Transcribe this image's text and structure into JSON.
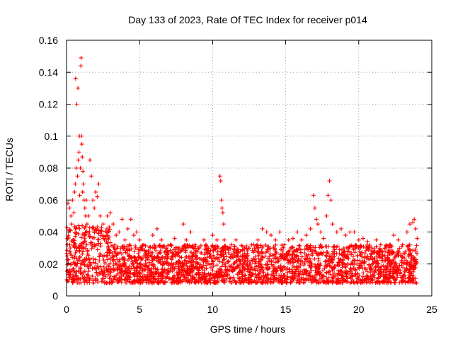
{
  "chart_data": {
    "type": "scatter",
    "title": "Day 133 of 2023, Rate Of TEC Index for receiver p014",
    "xlabel": "GPS time / hours",
    "ylabel": "ROTI / TECUs",
    "xlim": [
      0,
      25
    ],
    "ylim": [
      0,
      0.16
    ],
    "x_ticks": [
      0,
      5,
      10,
      15,
      20,
      25
    ],
    "x_tick_labels": [
      "0",
      "5",
      "10",
      "15",
      "20",
      "25"
    ],
    "y_ticks": [
      0,
      0.02,
      0.04,
      0.06,
      0.08,
      0.1,
      0.12,
      0.14,
      0.16
    ],
    "y_tick_labels": [
      "0",
      "0.02",
      "0.04",
      "0.06",
      "0.08",
      "0.1",
      "0.12",
      "0.14",
      "0.16"
    ],
    "grid": true,
    "marker": "plus",
    "color": "#ff0000",
    "series": [
      {
        "x": [
          0.05,
          0.1,
          0.15,
          0.2,
          0.25,
          0.3,
          0.35,
          0.4,
          0.45,
          0.5,
          0.55,
          0.6,
          0.62,
          0.65,
          0.7,
          0.75,
          0.78,
          0.8,
          0.85,
          0.88,
          0.9,
          0.95,
          0.98,
          1.0,
          1.02,
          1.05,
          1.08,
          1.1,
          1.12,
          1.15,
          1.2,
          1.25,
          1.3,
          1.35,
          1.4,
          1.5,
          1.6,
          1.7,
          1.8,
          1.9,
          2.0,
          2.1,
          2.2,
          2.3,
          2.4,
          2.5,
          2.6,
          2.8,
          3.0,
          3.2,
          3.4,
          3.6,
          3.8,
          4.0,
          4.2,
          4.4,
          4.6,
          4.8,
          5.0,
          5.3,
          5.6,
          5.9,
          6.2,
          6.5,
          6.8,
          7.1,
          7.4,
          7.7,
          8.0,
          8.2,
          8.5,
          8.8,
          9.1,
          9.4,
          9.7,
          10.0,
          10.3,
          10.5,
          10.55,
          10.6,
          10.65,
          10.7,
          10.75,
          10.8,
          11.0,
          11.3,
          11.6,
          11.9,
          12.2,
          12.5,
          12.8,
          13.1,
          13.4,
          13.7,
          14.0,
          14.3,
          14.6,
          14.9,
          15.2,
          15.5,
          15.8,
          16.1,
          16.4,
          16.7,
          16.9,
          17.0,
          17.1,
          17.2,
          17.4,
          17.6,
          17.8,
          17.9,
          18.0,
          18.1,
          18.2,
          18.5,
          18.8,
          19.1,
          19.4,
          19.7,
          20.0,
          20.3,
          20.6,
          20.9,
          21.2,
          21.5,
          21.8,
          22.1,
          22.4,
          22.7,
          23.0,
          23.3,
          23.5,
          23.7,
          23.8,
          23.9,
          24.0
        ],
        "y": [
          0.025,
          0.058,
          0.04,
          0.055,
          0.03,
          0.05,
          0.045,
          0.06,
          0.035,
          0.052,
          0.065,
          0.07,
          0.136,
          0.08,
          0.12,
          0.075,
          0.13,
          0.085,
          0.09,
          0.1,
          0.063,
          0.08,
          0.144,
          0.149,
          0.1,
          0.095,
          0.087,
          0.065,
          0.078,
          0.07,
          0.06,
          0.055,
          0.05,
          0.06,
          0.045,
          0.05,
          0.085,
          0.075,
          0.06,
          0.055,
          0.065,
          0.062,
          0.07,
          0.05,
          0.04,
          0.045,
          0.035,
          0.05,
          0.052,
          0.045,
          0.038,
          0.04,
          0.048,
          0.035,
          0.042,
          0.048,
          0.038,
          0.04,
          0.035,
          0.032,
          0.028,
          0.038,
          0.042,
          0.035,
          0.03,
          0.032,
          0.036,
          0.03,
          0.045,
          0.035,
          0.04,
          0.032,
          0.03,
          0.035,
          0.03,
          0.038,
          0.035,
          0.075,
          0.072,
          0.06,
          0.055,
          0.052,
          0.045,
          0.035,
          0.03,
          0.032,
          0.035,
          0.028,
          0.03,
          0.03,
          0.032,
          0.035,
          0.042,
          0.04,
          0.038,
          0.035,
          0.04,
          0.032,
          0.035,
          0.036,
          0.04,
          0.035,
          0.038,
          0.042,
          0.063,
          0.055,
          0.048,
          0.045,
          0.04,
          0.036,
          0.05,
          0.063,
          0.072,
          0.06,
          0.045,
          0.04,
          0.042,
          0.038,
          0.04,
          0.04,
          0.035,
          0.036,
          0.034,
          0.03,
          0.035,
          0.032,
          0.03,
          0.032,
          0.038,
          0.035,
          0.032,
          0.04,
          0.045,
          0.046,
          0.048,
          0.042,
          0.036
        ]
      }
    ],
    "point_density": {
      "description_of_band": "dense band of points between roughly 0.008 and 0.03 across the whole day",
      "x_range": [
        0,
        24
      ],
      "y_low": 0.008,
      "y_high": 0.032
    }
  }
}
